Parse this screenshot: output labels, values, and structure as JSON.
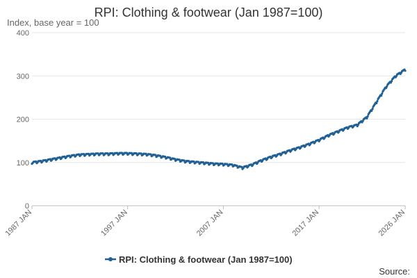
{
  "chart_data": {
    "type": "line",
    "title": "RPI: Clothing & footwear (Jan 1987=100)",
    "ylabel": "Index, base year = 100",
    "xlabel": "",
    "ylim": [
      0,
      400
    ],
    "yticks": [
      "0",
      "100",
      "200",
      "300",
      "400"
    ],
    "xlim": [
      1987,
      2026
    ],
    "xticks": [
      {
        "label": "1987 JAN",
        "value": 1987
      },
      {
        "label": "1997 JAN",
        "value": 1997
      },
      {
        "label": "2007 JAN",
        "value": 2007
      },
      {
        "label": "2017 JAN",
        "value": 2017
      },
      {
        "label": "2026 JAN",
        "value": 2026
      }
    ],
    "grid": true,
    "legend_position": "bottom",
    "series": [
      {
        "name": "RPI: Clothing & footwear (Jan 1987=100)",
        "color": "#206095",
        "seasonal_amplitude": 3,
        "x": [
          1987,
          1988,
          1989,
          1990,
          1991,
          1992,
          1993,
          1994,
          1995,
          1996,
          1997,
          1998,
          1999,
          2000,
          2001,
          2002,
          2003,
          2004,
          2005,
          2006,
          2007,
          2008,
          2009,
          2010,
          2011,
          2012,
          2013,
          2014,
          2015,
          2016,
          2017,
          2018,
          2019,
          2020,
          2021,
          2022,
          2023,
          2024,
          2025,
          2026
        ],
        "y": [
          100,
          103,
          107,
          111,
          115,
          118,
          119,
          120,
          120,
          121,
          121,
          120,
          119,
          116,
          112,
          107,
          103,
          101,
          99,
          97,
          96,
          94,
          88,
          95,
          105,
          113,
          120,
          128,
          135,
          143,
          152,
          163,
          172,
          181,
          187,
          205,
          240,
          275,
          300,
          315
        ]
      }
    ]
  },
  "source_label": "Source:"
}
